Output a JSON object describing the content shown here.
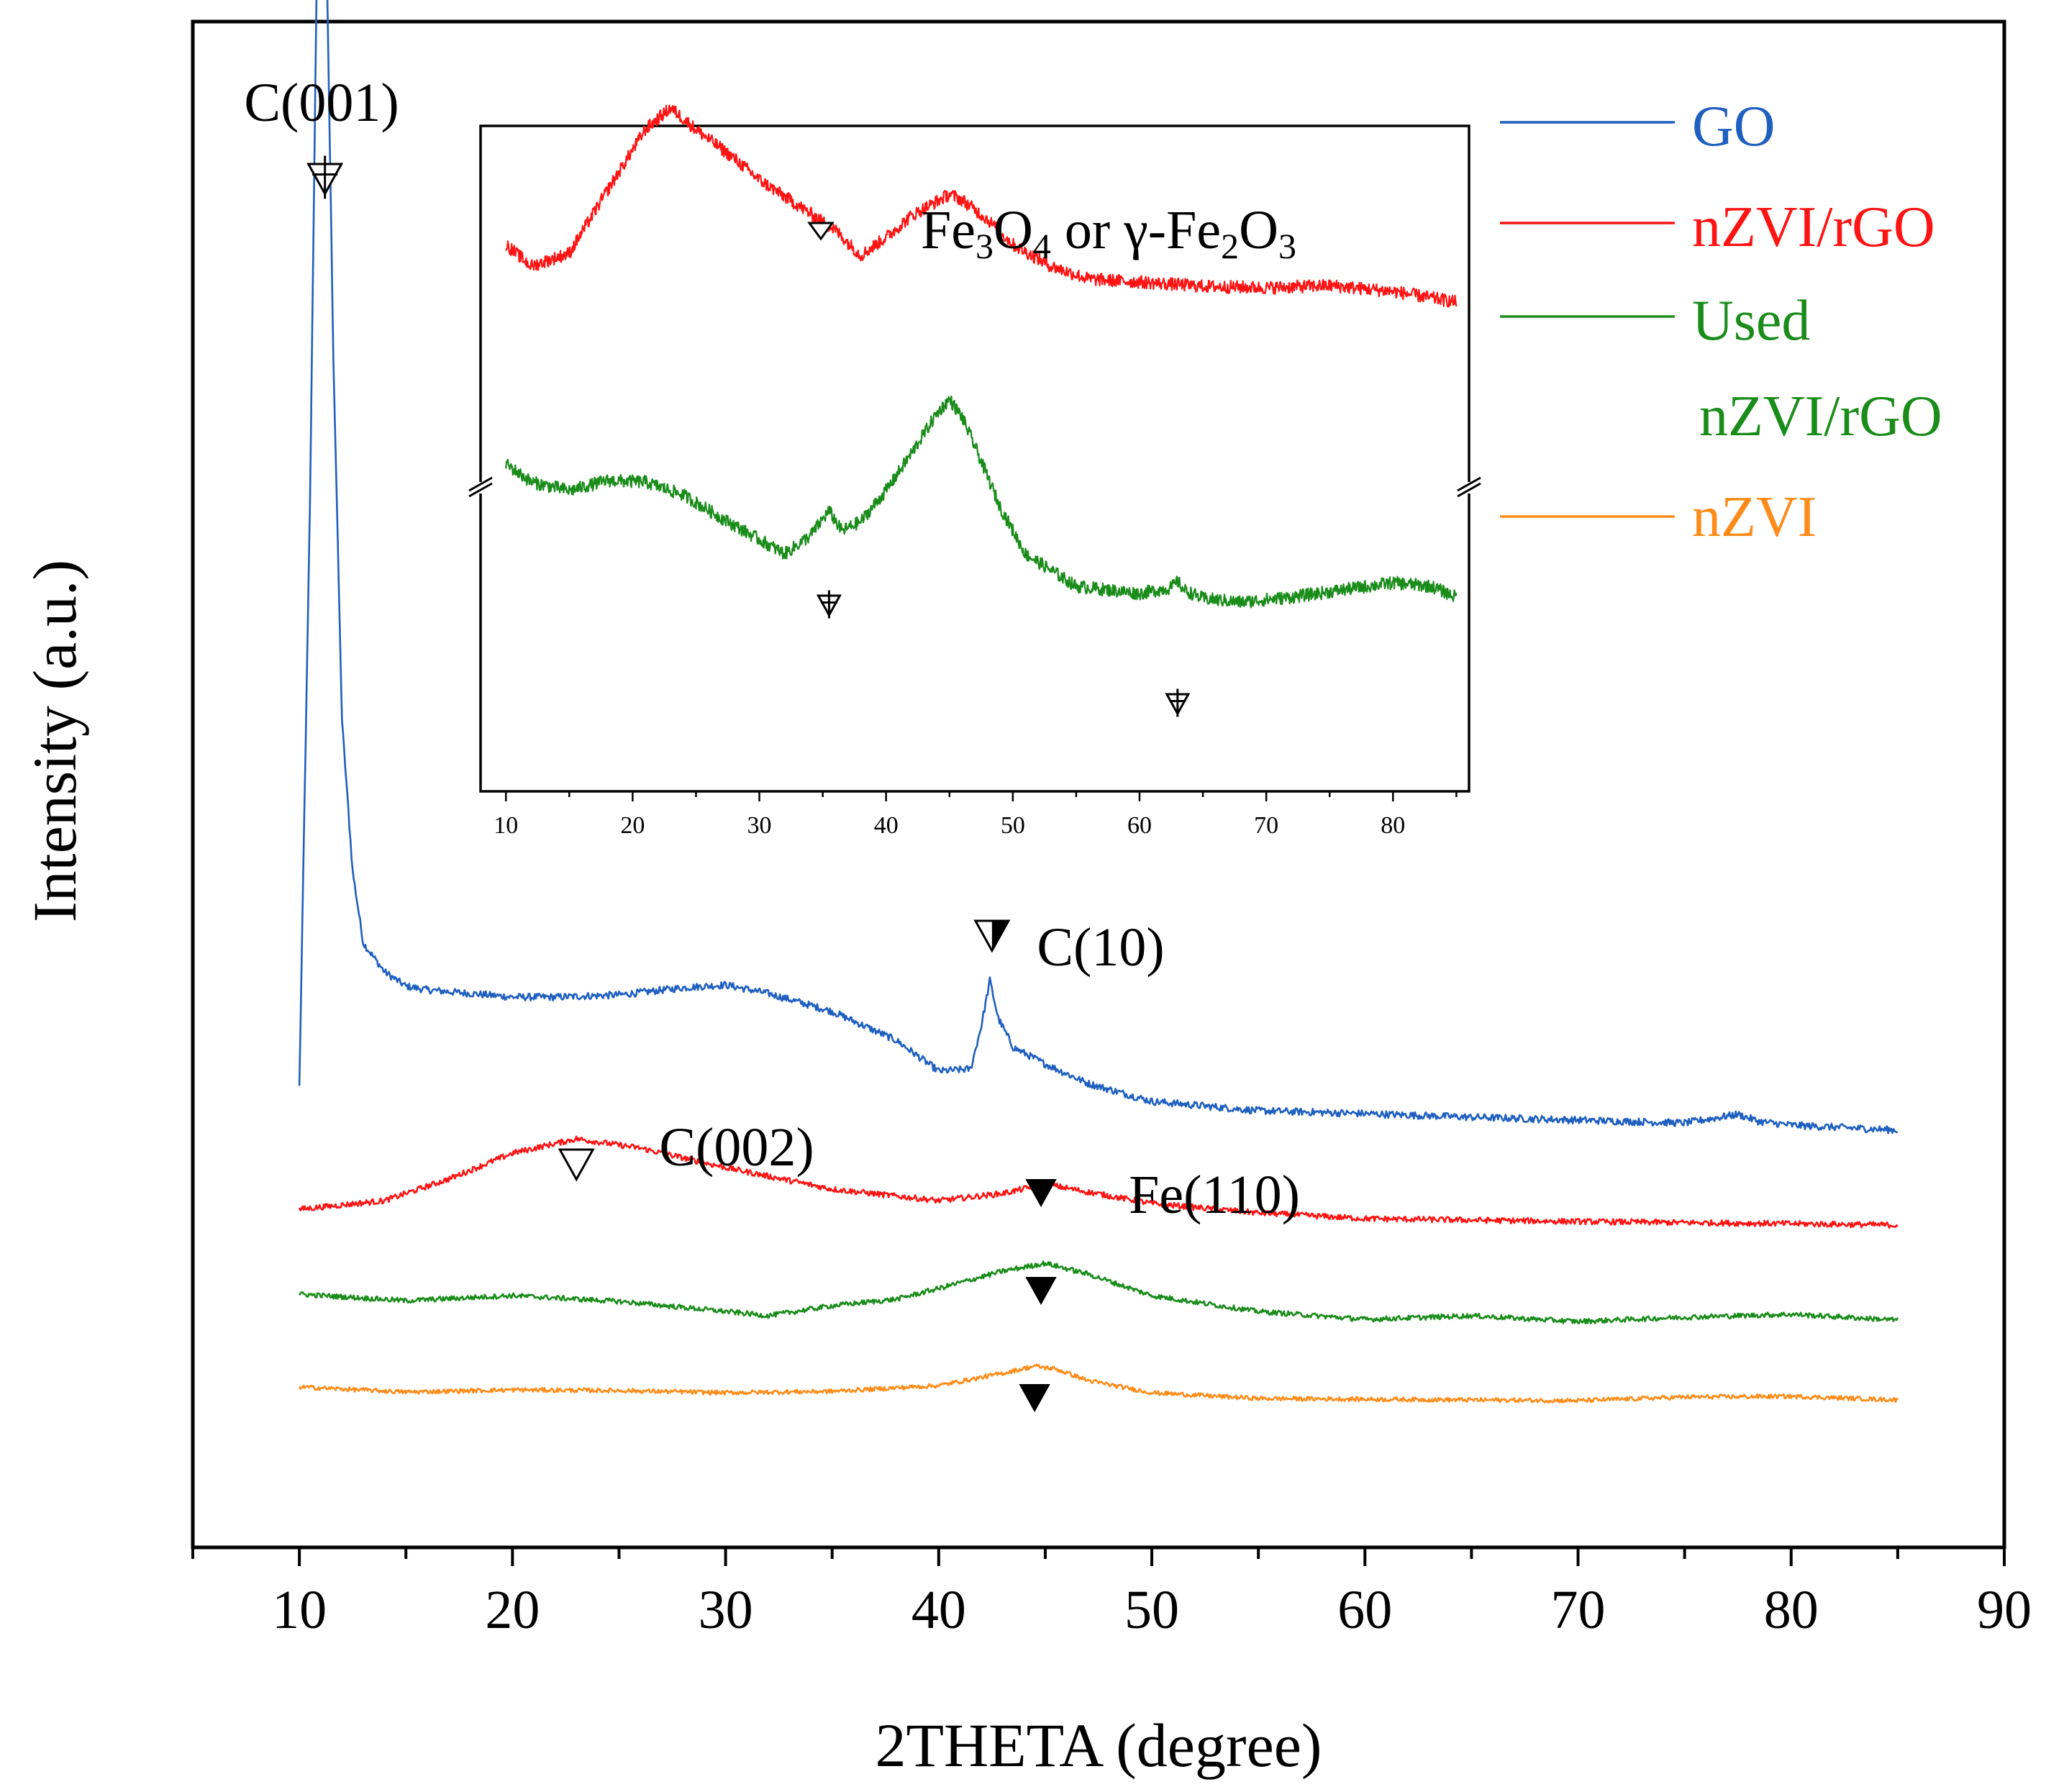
{
  "chart_data": [
    {
      "type": "line",
      "title": "",
      "xlabel": "2THETA (degree)",
      "ylabel": "Intensity (a.u.)",
      "xlim": [
        5,
        90
      ],
      "xticks": [
        10,
        20,
        30,
        40,
        50,
        60,
        70,
        80,
        90
      ],
      "yticks": [],
      "grid": false,
      "legend_position": "top-right",
      "y_units": "arbitrary, vertically offset traces",
      "series": [
        {
          "name": "GO",
          "color": "#1f5fbf",
          "x": [
            10,
            10.5,
            10.8,
            11,
            11.2,
            11.6,
            12,
            12.5,
            13,
            14,
            15,
            16,
            18,
            20,
            22,
            25,
            28,
            30,
            32,
            35,
            38,
            40,
            41.5,
            42,
            42.4,
            42.8,
            43.5,
            45,
            47,
            50,
            55,
            60,
            65,
            70,
            75,
            77.5,
            78.5,
            80,
            85
          ],
          "y": [
            640,
            1450,
            2150,
            2620,
            2350,
            1650,
            1150,
            940,
            840,
            800,
            780,
            775,
            770,
            765,
            765,
            768,
            778,
            782,
            770,
            745,
            705,
            662,
            665,
            725,
            788,
            735,
            695,
            672,
            645,
            620,
            607,
            603,
            598,
            594,
            590,
            602,
            592,
            587,
            580
          ]
        },
        {
          "name": "nZVI/rGO",
          "color": "#ff1414",
          "x": [
            10,
            14,
            17,
            20,
            23,
            26,
            30,
            35,
            40,
            43,
            45,
            47,
            50,
            55,
            60,
            70,
            80,
            85
          ],
          "y": [
            470,
            482,
            512,
            548,
            568,
            555,
            528,
            498,
            482,
            492,
            505,
            494,
            478,
            465,
            457,
            453,
            450,
            448
          ]
        },
        {
          "name": "Used nZVI/rGO",
          "color": "#1a8c1a",
          "x": [
            10,
            15,
            20,
            25,
            30,
            32,
            35,
            38,
            40,
            43,
            45,
            47,
            50,
            55,
            60,
            65,
            70,
            75,
            80,
            85
          ],
          "y": [
            352,
            343,
            350,
            342,
            328,
            322,
            336,
            345,
            360,
            384,
            395,
            380,
            350,
            328,
            317,
            322,
            314,
            320,
            324,
            316
          ]
        },
        {
          "name": "nZVI",
          "color": "#ff8c1a",
          "x": [
            10,
            15,
            20,
            25,
            30,
            35,
            40,
            43,
            44.5,
            45.5,
            47,
            50,
            55,
            60,
            65,
            70,
            75,
            80,
            85
          ],
          "y": [
            223,
            216,
            219,
            218,
            215,
            217,
            225,
            242,
            252,
            248,
            232,
            215,
            207,
            206,
            205,
            204,
            209,
            210,
            205
          ]
        }
      ],
      "annotations": [
        {
          "text": "C(001)",
          "x": 11.2,
          "marker": "open-down-triangle-crossed",
          "series": "GO"
        },
        {
          "text": "C(10)",
          "x": 42.5,
          "marker": "half-filled-down-triangle",
          "series": "GO"
        },
        {
          "text": "C(002)",
          "x": 23,
          "marker": "open-down-triangle",
          "series": "nZVI/rGO"
        },
        {
          "text": "Fe(110)",
          "x": 44.8,
          "marker": "filled-down-triangle",
          "series": "nZVI/rGO"
        },
        {
          "text": "",
          "x": 44.8,
          "marker": "filled-down-triangle",
          "series": "Used nZVI/rGO"
        },
        {
          "text": "",
          "x": 44.5,
          "marker": "filled-down-triangle",
          "series": "nZVI"
        }
      ]
    },
    {
      "type": "line",
      "role": "inset",
      "title": "",
      "xlim": [
        8,
        86
      ],
      "xticks": [
        10,
        20,
        30,
        40,
        50,
        60,
        70,
        80
      ],
      "yticks": [],
      "y_axis_break": true,
      "legend_note": "Fe3O4 or γ-Fe2O3",
      "series": [
        {
          "name": "nZVI/rGO",
          "color": "#ff1414",
          "x": [
            10,
            12,
            15,
            18,
            21,
            23,
            25,
            28,
            30,
            33,
            36,
            38,
            40,
            42,
            44,
            45,
            46,
            48,
            50,
            53,
            56,
            60,
            65,
            70,
            75,
            80,
            85
          ],
          "y": [
            760,
            730,
            748,
            835,
            920,
            950,
            920,
            880,
            850,
            815,
            780,
            745,
            770,
            800,
            820,
            830,
            822,
            795,
            760,
            730,
            712,
            708,
            702,
            700,
            703,
            695,
            680
          ]
        },
        {
          "name": "Used nZVI/rGO",
          "color": "#1a8c1a",
          "x": [
            10,
            12,
            15,
            18,
            21,
            24,
            27,
            30,
            32,
            34,
            35.5,
            36.5,
            38,
            40,
            42,
            44,
            45,
            46,
            47,
            49,
            51,
            55,
            60,
            62.5,
            63,
            63.5,
            65,
            68,
            72,
            76,
            80,
            83,
            85
          ],
          "y": [
            455,
            430,
            418,
            432,
            430,
            412,
            380,
            350,
            330,
            355,
            390,
            362,
            375,
            418,
            470,
            525,
            545,
            520,
            480,
            395,
            330,
            285,
            275,
            283,
            292,
            280,
            268,
            263,
            270,
            280,
            290,
            285,
            270
          ]
        }
      ],
      "annotations": [
        {
          "x": 35.5,
          "marker": "open-down-triangle-crossed",
          "series": "Used nZVI/rGO"
        },
        {
          "x": 63,
          "marker": "open-down-triangle-crossed",
          "series": "Used nZVI/rGO"
        }
      ]
    }
  ],
  "text": {
    "xlabel": "2THETA (degree)",
    "ylabel": "Intensity (a.u.)",
    "legend": [
      "GO",
      "nZVI/rGO",
      "Used",
      "nZVI/rGO",
      "nZVI"
    ],
    "peaks": {
      "c001": "C(001)",
      "c10": "C(10)",
      "c002": "C(002)",
      "fe110": "Fe(110)"
    },
    "inset_note_main": "Fe",
    "inset_note_sub3": "3",
    "inset_note_o": "O",
    "inset_note_sub4": "4",
    "inset_note_or": " or γ-Fe",
    "inset_note_sub2": "2",
    "inset_note_o2": "O",
    "inset_note_sub3b": "3"
  },
  "colors": {
    "GO": "#1f5fbf",
    "nZVI/rGO": "#ff1414",
    "Used nZVI/rGO": "#1a8c1a",
    "nZVI": "#ff8c1a"
  }
}
